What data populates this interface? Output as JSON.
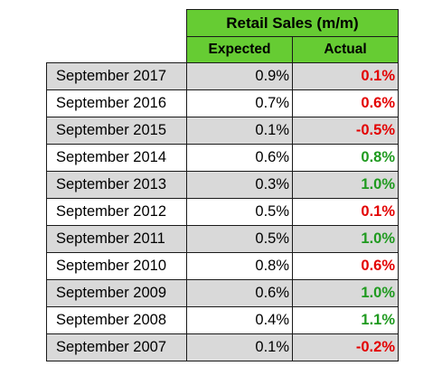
{
  "chart_data": {
    "type": "table",
    "title": "Retail Sales (m/m)",
    "columns": [
      "Expected",
      "Actual"
    ],
    "rows": [
      {
        "date": "September 2017",
        "expected": "0.9%",
        "actual": "0.1%",
        "actual_color": "#e30000"
      },
      {
        "date": "September 2016",
        "expected": "0.7%",
        "actual": "0.6%",
        "actual_color": "#e30000"
      },
      {
        "date": "September 2015",
        "expected": "0.1%",
        "actual": "-0.5%",
        "actual_color": "#e30000"
      },
      {
        "date": "September 2014",
        "expected": "0.6%",
        "actual": "0.8%",
        "actual_color": "#1f9a1f"
      },
      {
        "date": "September 2013",
        "expected": "0.3%",
        "actual": "1.0%",
        "actual_color": "#1f9a1f"
      },
      {
        "date": "September 2012",
        "expected": "0.5%",
        "actual": "0.1%",
        "actual_color": "#e30000"
      },
      {
        "date": "September 2011",
        "expected": "0.5%",
        "actual": "1.0%",
        "actual_color": "#1f9a1f"
      },
      {
        "date": "September 2010",
        "expected": "0.8%",
        "actual": "0.6%",
        "actual_color": "#e30000"
      },
      {
        "date": "September 2009",
        "expected": "0.6%",
        "actual": "1.0%",
        "actual_color": "#1f9a1f"
      },
      {
        "date": "September 2008",
        "expected": "0.4%",
        "actual": "1.1%",
        "actual_color": "#1f9a1f"
      },
      {
        "date": "September 2007",
        "expected": "0.1%",
        "actual": "-0.2%",
        "actual_color": "#e30000"
      }
    ],
    "colors": {
      "header_fill": "#66cc33",
      "shaded_row": "#d9d9d9",
      "above_expected": "#1f9a1f",
      "below_expected": "#e30000"
    }
  }
}
